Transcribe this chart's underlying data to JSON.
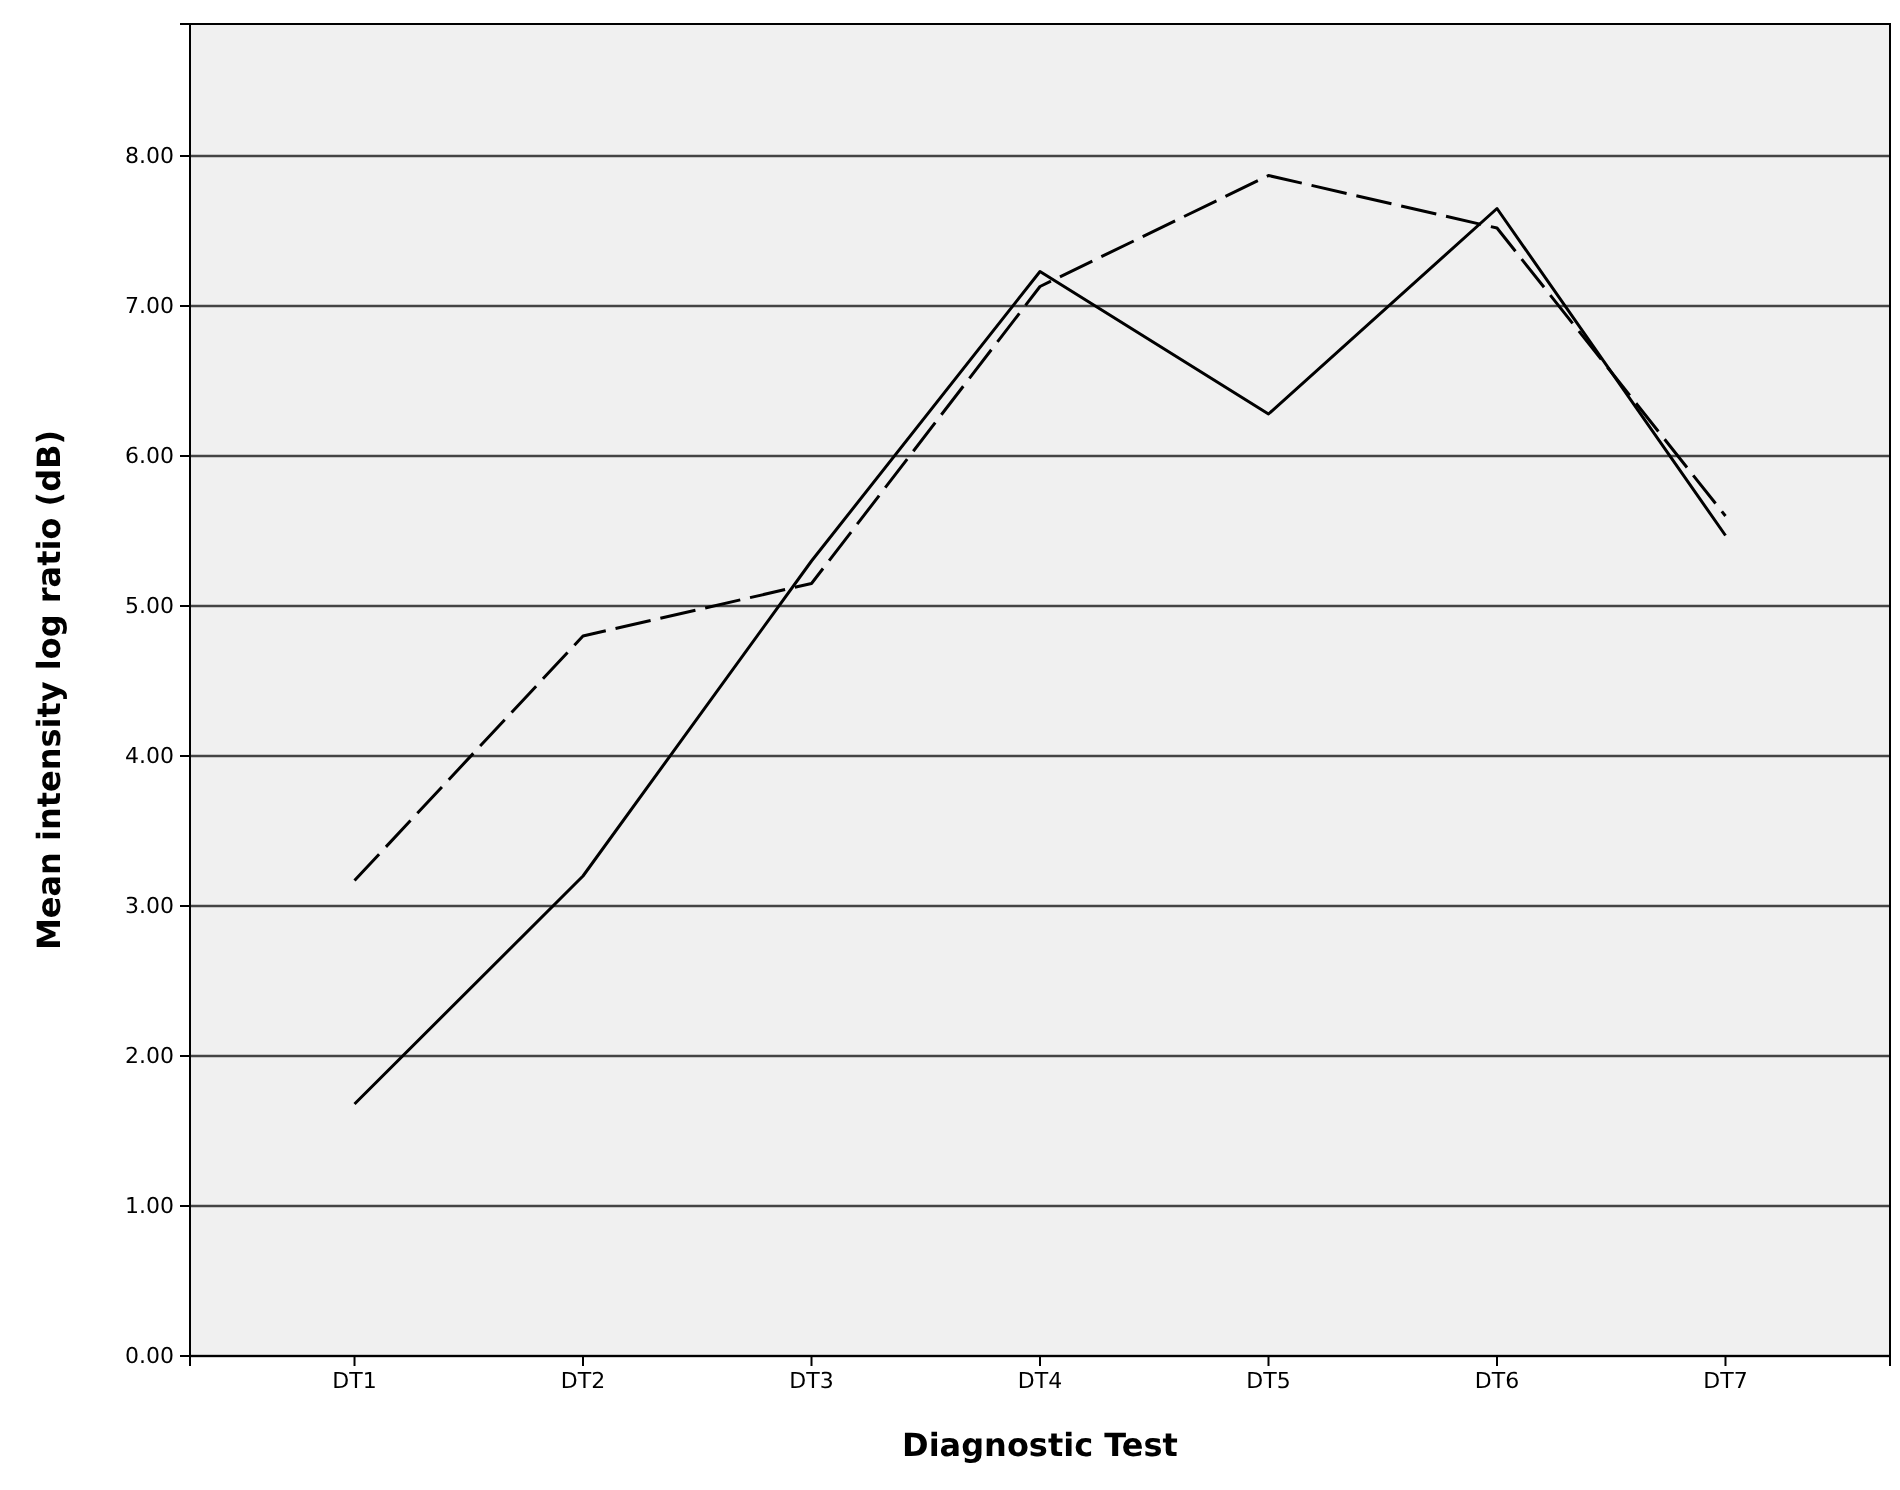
{
  "chart_data": {
    "type": "line",
    "xlabel": "Diagnostic Test",
    "ylabel": "Mean intensity log ratio (dB)",
    "categories": [
      "DT1",
      "DT2",
      "DT3",
      "DT4",
      "DT5",
      "DT6",
      "DT7"
    ],
    "series": [
      {
        "color": "#000000",
        "line_style": "solid",
        "values": [
          1.68,
          3.2,
          5.3,
          7.23,
          6.28,
          7.65,
          5.47
        ]
      },
      {
        "color": "#000000",
        "line_style": "dashed",
        "values": [
          3.17,
          4.8,
          5.15,
          7.13,
          7.87,
          7.52,
          5.6
        ]
      }
    ],
    "ylim": [
      0,
      8.88
    ],
    "yticks": [
      {
        "value": 0,
        "label": "0.00"
      },
      {
        "value": 1,
        "label": "1.00"
      },
      {
        "value": 2,
        "label": "2.00"
      },
      {
        "value": 3,
        "label": "3.00"
      },
      {
        "value": 4,
        "label": "4.00"
      },
      {
        "value": 5,
        "label": "5.00"
      },
      {
        "value": 6,
        "label": "6.00"
      },
      {
        "value": 7,
        "label": "7.00"
      },
      {
        "value": 8,
        "label": "8.00"
      }
    ],
    "grid": "y",
    "marker": "none"
  }
}
